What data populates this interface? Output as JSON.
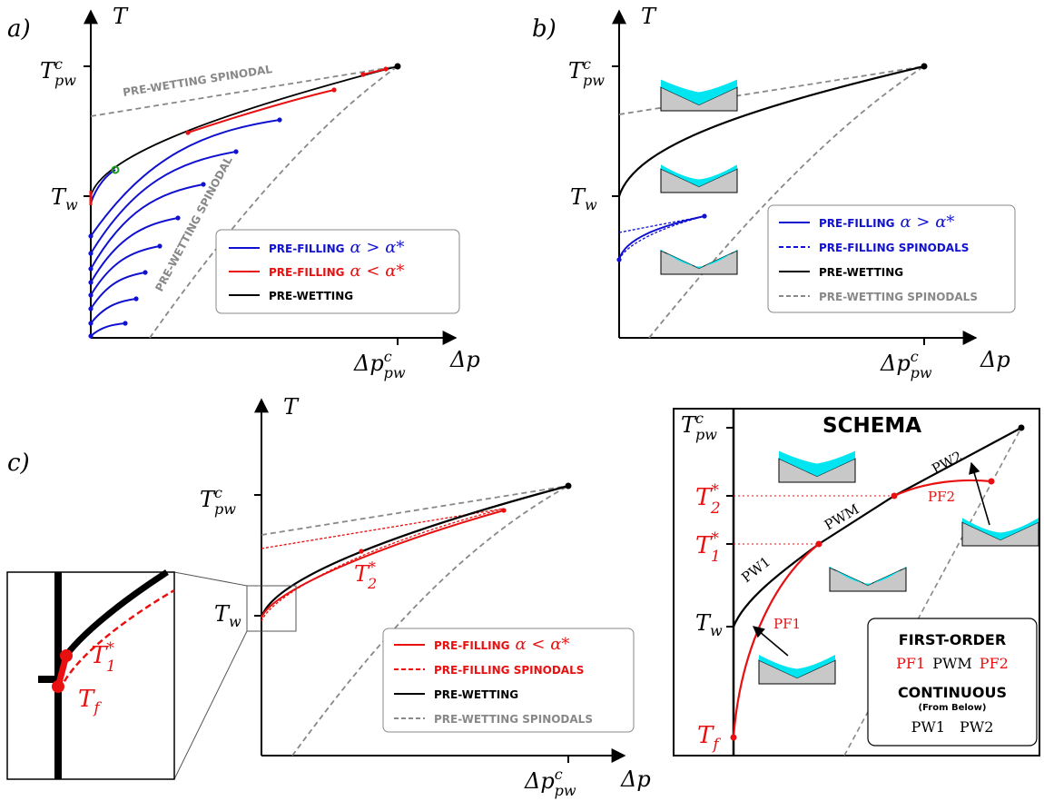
{
  "panels": {
    "a": {
      "tag": "a)",
      "t_axis": "T",
      "p_axis": "Δp",
      "t_pwc": "T",
      "t_pwc_sup": "c",
      "t_pwc_sub": "pw",
      "t_w": "T",
      "t_w_sub": "w",
      "p_pwc": "Δp",
      "p_pwc_sup": "c",
      "p_pwc_sub": "pw",
      "spinodal_label_1": "PRE-WETTING SPINODAL",
      "spinodal_label_2": "PRE-WETTING SPINODAL",
      "legend": [
        {
          "label": "PRE-FILLING",
          "math": "α > α*",
          "color": "#1010d0",
          "style": "solid"
        },
        {
          "label": "PRE-FILLING",
          "math": "α < α*",
          "color": "#e81010",
          "style": "solid"
        },
        {
          "label": "PRE-WETTING",
          "math": "",
          "color": "#000000",
          "style": "solid"
        }
      ]
    },
    "b": {
      "tag": "b)",
      "t_axis": "T",
      "p_axis": "Δp",
      "t_pwc": "T",
      "t_pwc_sup": "c",
      "t_pwc_sub": "pw",
      "t_w": "T",
      "t_w_sub": "w",
      "p_pwc": "Δp",
      "p_pwc_sup": "c",
      "p_pwc_sub": "pw",
      "legend": [
        {
          "label": "PRE-FILLING",
          "math": "α > α*",
          "color": "#1010d0",
          "style": "solid"
        },
        {
          "label": "PRE-FILLING SPINODALS",
          "math": "",
          "color": "#1010d0",
          "style": "dashed"
        },
        {
          "label": "PRE-WETTING",
          "math": "",
          "color": "#000000",
          "style": "solid"
        },
        {
          "label": "PRE-WETTING SPINODALS",
          "math": "",
          "color": "#888888",
          "style": "dashed"
        }
      ]
    },
    "c": {
      "tag": "c)",
      "t_axis": "T",
      "p_axis": "Δp",
      "t_pwc": "T",
      "t_pwc_sup": "c",
      "t_pwc_sub": "pw",
      "t_w": "T",
      "t_w_sub": "w",
      "p_pwc": "Δp",
      "p_pwc_sup": "c",
      "p_pwc_sub": "pw",
      "t2": "T",
      "t2_sup": "*",
      "t2_sub": "2",
      "inset_t1": "T",
      "inset_t1_sup": "*",
      "inset_t1_sub": "1",
      "inset_tf": "T",
      "inset_tf_sub": "f",
      "legend": [
        {
          "label": "PRE-FILLING",
          "math": "α < α*",
          "color": "#e81010",
          "style": "solid"
        },
        {
          "label": "PRE-FILLING SPINODALS",
          "math": "",
          "color": "#e81010",
          "style": "dashed"
        },
        {
          "label": "PRE-WETTING",
          "math": "",
          "color": "#000000",
          "style": "solid"
        },
        {
          "label": "PRE-WETTING SPINODALS",
          "math": "",
          "color": "#888888",
          "style": "dashed"
        }
      ]
    },
    "d": {
      "title": "SCHEMA",
      "t_pwc": "T",
      "t_pwc_sup": "c",
      "t_pwc_sub": "pw",
      "t2": "T",
      "t2_sup": "*",
      "t2_sub": "2",
      "t1": "T",
      "t1_sup": "*",
      "t1_sub": "1",
      "t_w": "T",
      "t_w_sub": "w",
      "t_f": "T",
      "t_f_sub": "f",
      "labels": {
        "pw1": "PW1",
        "pwm": "PWM",
        "pw2": "PW2",
        "pf1": "PF1",
        "pf2": "PF2"
      },
      "box": {
        "first_order": "FIRST-ORDER",
        "fo_items": [
          "PF1",
          "PWM",
          "PF2"
        ],
        "continuous": "CONTINUOUS",
        "from_below": "(From Below)",
        "c_items": [
          "PW1",
          "PW2"
        ]
      }
    }
  },
  "colors": {
    "blue": "#1010d0",
    "red": "#e81010",
    "black": "#000000",
    "gray": "#888888",
    "cyan": "#00e5f0",
    "wall": "#c8c8c8"
  }
}
